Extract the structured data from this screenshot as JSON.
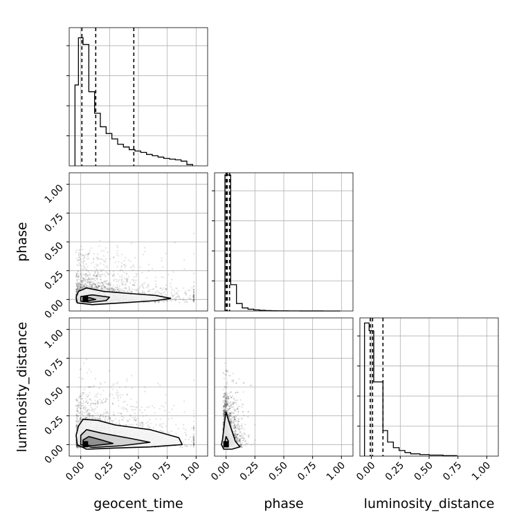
{
  "chart_data": {
    "type": "corner",
    "parameters": [
      "geocent_time",
      "phase",
      "luminosity_distance"
    ],
    "axis_range": [
      -0.1,
      1.1
    ],
    "ticks": [
      0.0,
      0.25,
      0.5,
      0.75,
      1.0
    ],
    "tick_labels": [
      "0.00",
      "0.25",
      "0.50",
      "0.75",
      "1.00"
    ],
    "grid": true,
    "quantile_lines": {
      "geocent_time": [
        0.01,
        0.13,
        0.46
      ],
      "phase": [
        0.0,
        0.01,
        0.03
      ],
      "luminosity_distance": [
        -0.01,
        0.01,
        0.1
      ]
    },
    "histograms": {
      "geocent_time": {
        "bin_edges": [
          -0.05,
          -0.02,
          0.02,
          0.07,
          0.12,
          0.17,
          0.22,
          0.27,
          0.32,
          0.37,
          0.42,
          0.47,
          0.52,
          0.57,
          0.62,
          0.67,
          0.72,
          0.77,
          0.82,
          0.87,
          0.92,
          0.97
        ],
        "counts": [
          1.2,
          1.9,
          1.8,
          1.1,
          0.78,
          0.58,
          0.48,
          0.4,
          0.32,
          0.28,
          0.24,
          0.22,
          0.2,
          0.17,
          0.15,
          0.13,
          0.11,
          0.1,
          0.09,
          0.07,
          0.02
        ],
        "ymax": 2.05
      },
      "phase": {
        "bin_edges": [
          -0.01,
          0.04,
          0.09,
          0.14,
          0.19,
          0.24,
          0.29,
          0.34,
          0.39,
          0.44,
          0.49,
          0.54,
          0.59,
          0.64,
          0.69,
          0.74,
          0.79,
          0.84,
          0.89,
          0.94,
          0.99
        ],
        "counts": [
          3.1,
          0.6,
          0.17,
          0.07,
          0.04,
          0.025,
          0.015,
          0.01,
          0.006,
          0.004,
          0.003,
          0.002,
          0.002,
          0.001,
          0.001,
          0.001,
          0.001,
          0.0,
          0.0,
          0.0
        ],
        "ymax": 3.15
      },
      "luminosity_distance": {
        "bin_edges": [
          -0.06,
          -0.02,
          0.02,
          0.1,
          0.14,
          0.19,
          0.24,
          0.29,
          0.34,
          0.42,
          0.5,
          0.62,
          0.74
        ],
        "counts": [
          5.2,
          4.9,
          2.9,
          1.0,
          0.55,
          0.33,
          0.22,
          0.14,
          0.09,
          0.06,
          0.04,
          0.02
        ],
        "ymax": 5.4
      }
    },
    "contours": {
      "phase_vs_geocent_time": [
        [
          [
            -0.02,
            0.07
          ],
          [
            0.05,
            0.1
          ],
          [
            0.2,
            0.07
          ],
          [
            0.45,
            0.05
          ],
          [
            0.65,
            0.035
          ],
          [
            0.78,
            0.01
          ],
          [
            0.65,
            -0.01
          ],
          [
            0.35,
            -0.03
          ],
          [
            0.1,
            -0.045
          ],
          [
            -0.03,
            -0.03
          ],
          [
            -0.04,
            0.02
          ]
        ],
        [
          [
            0.0,
            0.025
          ],
          [
            0.1,
            0.04
          ],
          [
            0.25,
            0.02
          ],
          [
            0.22,
            -0.01
          ],
          [
            0.08,
            -0.025
          ],
          [
            0.0,
            -0.015
          ]
        ],
        [
          [
            0.02,
            0.01
          ],
          [
            0.08,
            0.015
          ],
          [
            0.13,
            0.0
          ],
          [
            0.06,
            -0.012
          ],
          [
            0.02,
            -0.005
          ]
        ]
      ],
      "luminosity_distance_vs_geocent_time": [
        [
          [
            -0.02,
            0.16
          ],
          [
            0.02,
            0.22
          ],
          [
            0.15,
            0.21
          ],
          [
            0.3,
            0.17
          ],
          [
            0.6,
            0.13
          ],
          [
            0.85,
            0.06
          ],
          [
            0.88,
            0.0
          ],
          [
            0.6,
            -0.02
          ],
          [
            0.3,
            -0.03
          ],
          [
            0.05,
            -0.04
          ],
          [
            -0.03,
            0.0
          ],
          [
            -0.04,
            0.08
          ]
        ],
        [
          [
            0.0,
            0.08
          ],
          [
            0.05,
            0.13
          ],
          [
            0.18,
            0.1
          ],
          [
            0.45,
            0.05
          ],
          [
            0.6,
            0.02
          ],
          [
            0.35,
            -0.01
          ],
          [
            0.1,
            -0.025
          ],
          [
            0.0,
            0.0
          ]
        ],
        [
          [
            0.02,
            0.04
          ],
          [
            0.07,
            0.07
          ],
          [
            0.18,
            0.04
          ],
          [
            0.28,
            0.01
          ],
          [
            0.1,
            -0.01
          ],
          [
            0.02,
            0.0
          ]
        ]
      ],
      "luminosity_distance_vs_phase": [
        [
          [
            -0.03,
            0.05
          ],
          [
            -0.01,
            0.22
          ],
          [
            0.0,
            0.28
          ],
          [
            0.03,
            0.18
          ],
          [
            0.08,
            0.03
          ],
          [
            0.12,
            -0.02
          ],
          [
            0.05,
            -0.04
          ],
          [
            -0.02,
            -0.04
          ],
          [
            -0.04,
            0.0
          ]
        ],
        [
          [
            -0.01,
            0.02
          ],
          [
            0.0,
            0.07
          ],
          [
            0.02,
            0.03
          ],
          [
            0.01,
            0.0
          ]
        ]
      ]
    },
    "scatter_points_approx": 2500
  }
}
